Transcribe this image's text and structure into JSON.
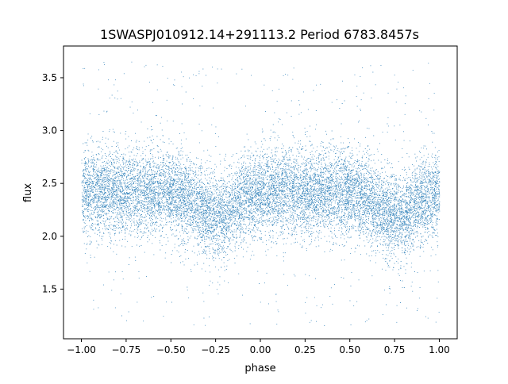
{
  "chart_data": {
    "type": "scatter",
    "title": "1SWASPJ010912.14+291113.2 Period 6783.8457s",
    "xlabel": "phase",
    "ylabel": "flux",
    "xlim": [
      -1.1,
      1.1
    ],
    "ylim": [
      1.03,
      3.8
    ],
    "xticks": [
      -1.0,
      -0.75,
      -0.5,
      -0.25,
      0.0,
      0.25,
      0.5,
      0.75,
      1.0
    ],
    "xtick_labels": [
      "−1.00",
      "−0.75",
      "−0.50",
      "−0.25",
      "0.00",
      "0.25",
      "0.50",
      "0.75",
      "1.00"
    ],
    "yticks": [
      1.5,
      2.0,
      2.5,
      3.0,
      3.5
    ],
    "ytick_labels": [
      "1.5",
      "2.0",
      "2.5",
      "3.0",
      "3.5"
    ],
    "grid": false,
    "legend": "none",
    "point_color": "#1f77b4",
    "series": [
      {
        "x_range": [
          -1.0,
          1.0
        ],
        "mean_flux": 2.42,
        "dip_phases": [
          -0.25,
          0.75
        ],
        "dip_depth": 0.12,
        "scatter_sigma": 0.2,
        "outlier_range": [
          1.15,
          3.67
        ]
      }
    ]
  }
}
